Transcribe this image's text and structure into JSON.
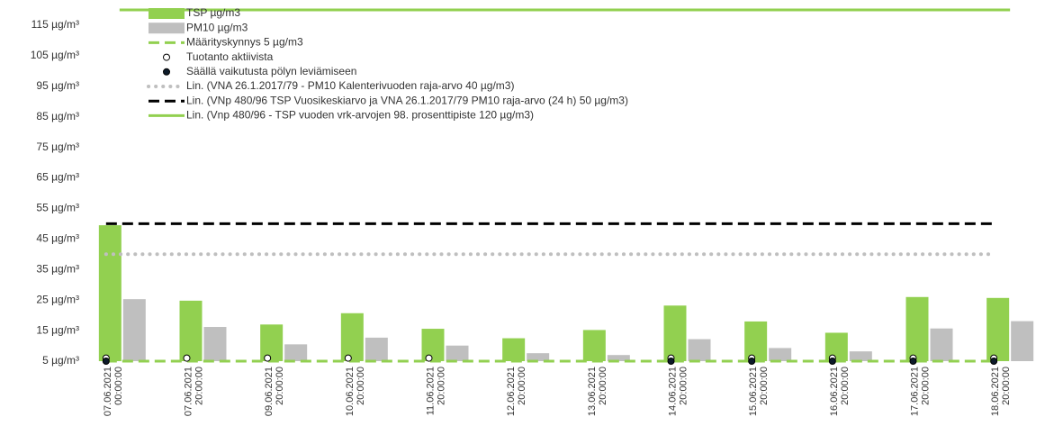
{
  "chart_data": {
    "type": "bar",
    "categories": [
      "07.06.2021 00:00:00",
      "07.06.2021 20:00:00",
      "09.06.2021 20:00:00",
      "10.06.2021 20:00:00",
      "11.06.2021 20:00:00",
      "12.06.2021 20:00:00",
      "13.06.2021 20:00:00",
      "14.06.2021 20:00:00",
      "15.06.2021 20:00:00",
      "16.06.2021 20:00:00",
      "17.06.2021 20:00:00",
      "18.06.2021 20:00:00"
    ],
    "series": [
      {
        "name": "TSP µg/m3",
        "type": "bar",
        "color": "#92d050",
        "values": [
          49.5,
          24.8,
          17,
          20.7,
          15.6,
          12.5,
          15.2,
          23.2,
          18,
          14.3,
          26,
          25.7
        ]
      },
      {
        "name": "PM10 µg/m3",
        "type": "bar",
        "color": "#bfbfbf",
        "values": [
          25.3,
          16.2,
          10.5,
          12.7,
          10.1,
          7.6,
          7,
          12.2,
          9.3,
          8.2,
          15.7,
          18.1
        ]
      },
      {
        "name": "Määrityskynnys 5 µg/m3",
        "type": "line",
        "dash": "dashed",
        "color": "#92d050",
        "values": [
          5,
          5,
          5,
          5,
          5,
          5,
          5,
          5,
          5,
          5,
          5,
          5
        ]
      },
      {
        "name": "Tuotanto aktiivista",
        "type": "scatter",
        "color": "#ffffff",
        "values": [
          6,
          6,
          6,
          6,
          6,
          null,
          null,
          6,
          6,
          6,
          6,
          6
        ]
      },
      {
        "name": "Säällä vaikutusta pölyn leviämiseen",
        "type": "scatter",
        "color": "#0d1b2a",
        "values": [
          5,
          null,
          null,
          null,
          null,
          null,
          null,
          5,
          5,
          5,
          5,
          5
        ]
      },
      {
        "name": "Lin. (VNA 26.1.2017/79 - PM10 Kalenterivuoden raja-arvo 40 µg/m3)",
        "type": "line",
        "dash": "dotted",
        "color": "#bfbfbf",
        "values": [
          40,
          40,
          40,
          40,
          40,
          40,
          40,
          40,
          40,
          40,
          40,
          40
        ]
      },
      {
        "name": "Lin. (VNp 480/96 TSP Vuosikeskiarvo ja VNA 26.1.2017/79 PM10 raja-arvo (24 h) 50 µg/m3)",
        "type": "line",
        "dash": "dashed",
        "color": "#000000",
        "values": [
          50,
          50,
          50,
          50,
          50,
          50,
          50,
          50,
          50,
          50,
          50,
          50
        ]
      },
      {
        "name": "Lin. (Vnp 480/96 - TSP vuoden vrk-arvojen 98. prosenttipiste 120 µg/m3)",
        "type": "line",
        "dash": "solid",
        "color": "#92d050",
        "values": [
          120,
          120,
          120,
          120,
          120,
          120,
          120,
          120,
          120,
          120,
          120,
          120
        ]
      }
    ],
    "ylim": [
      5,
      120
    ],
    "yticks": [
      {
        "value": 5,
        "label": "5 µg/m³"
      },
      {
        "value": 15,
        "label": "15 µg/m³"
      },
      {
        "value": 25,
        "label": "25 µg/m³"
      },
      {
        "value": 35,
        "label": "35 µg/m³"
      },
      {
        "value": 45,
        "label": "45 µg/m³"
      },
      {
        "value": 55,
        "label": "55 µg/m³"
      },
      {
        "value": 65,
        "label": "65 µg/m³"
      },
      {
        "value": 75,
        "label": "75 µg/m³"
      },
      {
        "value": 85,
        "label": "85 µg/m³"
      },
      {
        "value": 95,
        "label": "95 µg/m³"
      },
      {
        "value": 105,
        "label": "105 µg/m³"
      },
      {
        "value": 115,
        "label": "115 µg/m³"
      }
    ],
    "legend": "top-left"
  }
}
